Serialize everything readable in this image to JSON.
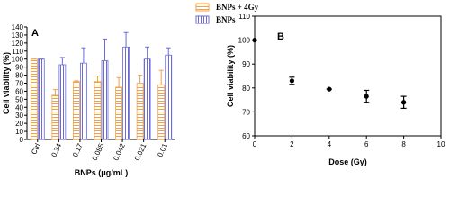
{
  "chart_data": [
    {
      "type": "bar",
      "panel_label": "A",
      "x_label": "BNPs (μg/mL)",
      "y_label": "Cell viability (%)",
      "categories": [
        "Ctrl",
        "0.34",
        "0.17",
        "0.085",
        "0.042",
        "0.021",
        "0.01"
      ],
      "series": [
        {
          "name": "BNPs + 4Gy",
          "color": "#f0a24a",
          "values": [
            100,
            55,
            72,
            72,
            65,
            70,
            68
          ],
          "errors": [
            0,
            7,
            1,
            7,
            12,
            10,
            18
          ]
        },
        {
          "name": "BNPs",
          "color": "#6b6bd6",
          "values": [
            100,
            93,
            95,
            98,
            115,
            100,
            105
          ],
          "errors": [
            0,
            9,
            19,
            27,
            18,
            15,
            9
          ]
        }
      ],
      "ylim": [
        0,
        140
      ],
      "yticks": [
        0,
        10,
        20,
        30,
        40,
        50,
        60,
        70,
        80,
        90,
        100,
        110,
        120,
        130,
        140
      ]
    },
    {
      "type": "scatter",
      "panel_label": "B",
      "x_label": "Dose (Gy)",
      "y_label": "Cell viability (%)",
      "x": [
        0,
        2,
        4,
        6,
        8
      ],
      "values": [
        100,
        83,
        79.5,
        76.5,
        74
      ],
      "errors": [
        0,
        1.5,
        0,
        2.5,
        2.5
      ],
      "color": "#000000",
      "xlim": [
        0,
        10
      ],
      "xticks": [
        0,
        2,
        4,
        6,
        8,
        10
      ],
      "ylim": [
        60,
        110
      ],
      "yticks": [
        60,
        70,
        80,
        90,
        100,
        110
      ]
    }
  ]
}
